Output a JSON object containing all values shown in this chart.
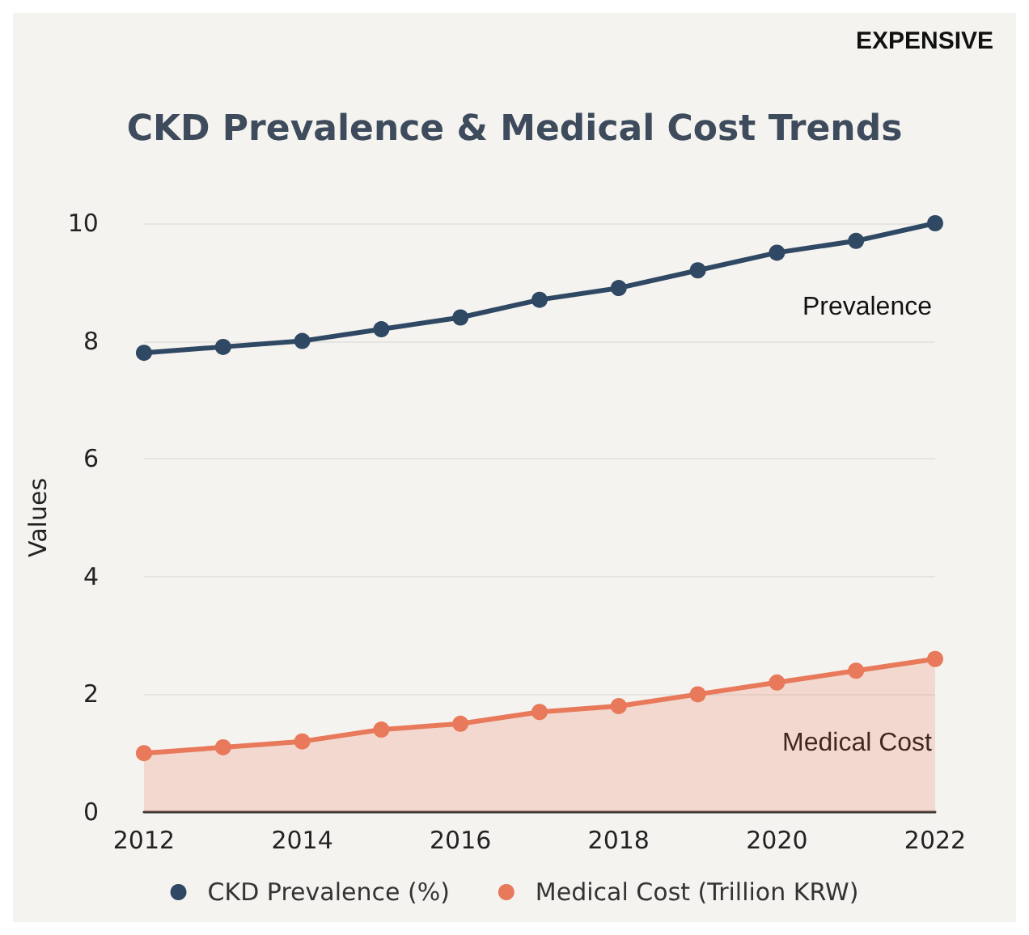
{
  "chart_data": {
    "type": "line",
    "title": "CKD Prevalence & Medical Cost Trends",
    "ylabel": "Values",
    "x": [
      2012,
      2013,
      2014,
      2015,
      2016,
      2017,
      2018,
      2019,
      2020,
      2021,
      2022
    ],
    "series": [
      {
        "name": "CKD Prevalence (%)",
        "color": "#2f4863",
        "values": [
          7.8,
          7.9,
          8.0,
          8.2,
          8.4,
          8.7,
          8.9,
          9.2,
          9.5,
          9.7,
          10.0
        ]
      },
      {
        "name": "Medical Cost (Trillion KRW)",
        "type": "area",
        "color": "#e8795a",
        "values": [
          1.0,
          1.1,
          1.2,
          1.4,
          1.5,
          1.7,
          1.8,
          2.0,
          2.2,
          2.4,
          2.6
        ]
      }
    ],
    "xlim": [
      2012,
      2022
    ],
    "xticks": [
      2012,
      2014,
      2016,
      2018,
      2020,
      2022
    ],
    "ylim": [
      0,
      10
    ],
    "yticks": [
      0,
      2,
      4,
      6,
      8,
      10
    ],
    "grid": "y",
    "legend": "bottom",
    "marker": "circle",
    "line_style": "solid",
    "annotations": [
      "EXPENSIVE",
      "Prevalence",
      "Medical Cost"
    ]
  }
}
